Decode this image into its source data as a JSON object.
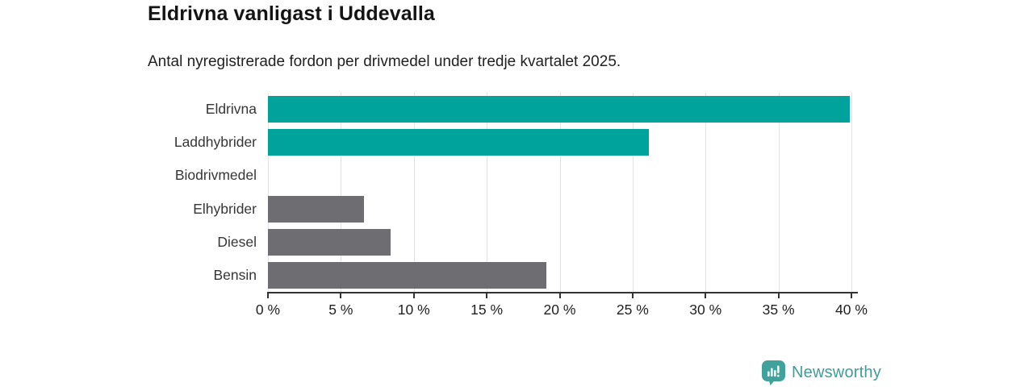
{
  "header": {
    "title": "Eldrivna vanligast i Uddevalla",
    "subtitle": "Antal nyregistrerade fordon per drivmedel under tredje kvartalet 2025."
  },
  "branding": {
    "name": "Newsworthy",
    "icon": "newsworthy-bar-chart-bubble-icon",
    "color": "#3f9e98"
  },
  "colors": {
    "highlight_teal": "#00a39b",
    "neutral_gray": "#6d6d72",
    "axis": "#333333",
    "gridline": "#e3e3e3"
  },
  "chart_data": {
    "type": "bar",
    "orientation": "horizontal",
    "title": "Eldrivna vanligast i Uddevalla",
    "subtitle": "Antal nyregistrerade fordon per drivmedel under tredje kvartalet 2025.",
    "xlabel": "",
    "ylabel": "",
    "categories": [
      "Eldrivna",
      "Laddhybrider",
      "Biodrivmedel",
      "Elhybrider",
      "Diesel",
      "Bensin"
    ],
    "values": [
      39.9,
      26.1,
      0,
      6.6,
      8.4,
      19.1
    ],
    "bar_colors": [
      "#00a39b",
      "#00a39b",
      null,
      "#6d6d72",
      "#6d6d72",
      "#6d6d72"
    ],
    "unit": "%",
    "xlim": [
      0,
      40
    ],
    "x_ticks": [
      0,
      5,
      10,
      15,
      20,
      25,
      30,
      35,
      40
    ],
    "x_tick_labels": [
      "0 %",
      "5 %",
      "10 %",
      "15 %",
      "20 %",
      "25 %",
      "30 %",
      "35 %",
      "40 %"
    ],
    "grid": true,
    "legend": false
  }
}
